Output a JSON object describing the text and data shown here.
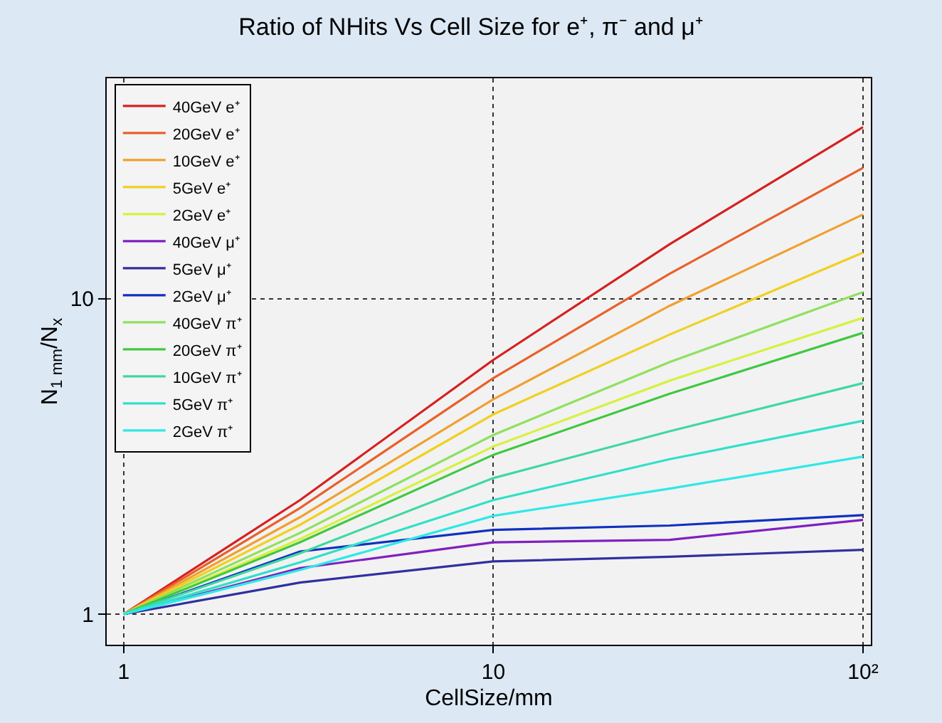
{
  "chart_data": {
    "type": "line",
    "title": "Ratio of NHits Vs Cell Size for e⁺, π⁻ and μ⁺",
    "xlabel": "CellSize/mm",
    "ylabel": "N$_{1 mm}$/N$_{x}$",
    "x": [
      1,
      3,
      10,
      30,
      100
    ],
    "log": "xy",
    "xlim": [
      0.9,
      105
    ],
    "ylim": [
      0.8,
      50
    ],
    "xticks": [
      1,
      10,
      {
        "value": 100,
        "label": "10²"
      }
    ],
    "yticks": [
      1,
      10
    ],
    "grid": true,
    "legend": "top left",
    "marker": "none",
    "line_style": "solid",
    "series": [
      {
        "name": "40GeV e⁺",
        "color": "#d62020",
        "values": [
          1,
          2.3,
          6.4,
          14.9,
          35
        ]
      },
      {
        "name": "20GeV e⁺",
        "color": "#e8602a",
        "values": [
          1,
          2.17,
          5.6,
          12,
          26
        ]
      },
      {
        "name": "10GeV e⁺",
        "color": "#f0a030",
        "values": [
          1,
          2.03,
          4.8,
          9.5,
          18.5
        ]
      },
      {
        "name": "5GeV e⁺",
        "color": "#f0d020",
        "values": [
          1,
          1.92,
          4.3,
          7.7,
          14
        ]
      },
      {
        "name": "2GeV e⁺",
        "color": "#d8f040",
        "values": [
          1,
          1.73,
          3.4,
          5.5,
          8.7
        ]
      },
      {
        "name": "40GeV μ⁺",
        "color": "#8020c0",
        "values": [
          1,
          1.4,
          1.69,
          1.72,
          1.99
        ]
      },
      {
        "name": "5GeV μ⁺",
        "color": "#3030a0",
        "values": [
          1,
          1.26,
          1.47,
          1.52,
          1.6
        ]
      },
      {
        "name": "2GeV μ⁺",
        "color": "#1030c0",
        "values": [
          1,
          1.58,
          1.85,
          1.91,
          2.06
        ]
      },
      {
        "name": "40GeV π⁺",
        "color": "#90e060",
        "values": [
          1,
          1.81,
          3.7,
          6.3,
          10.5
        ]
      },
      {
        "name": "20GeV π⁺",
        "color": "#40c840",
        "values": [
          1,
          1.69,
          3.2,
          5,
          7.8
        ]
      },
      {
        "name": "10GeV π⁺",
        "color": "#40d8a0",
        "values": [
          1,
          1.56,
          2.7,
          3.8,
          5.4
        ]
      },
      {
        "name": "5GeV π⁺",
        "color": "#30e0c8",
        "values": [
          1,
          1.46,
          2.3,
          3.1,
          4.1
        ]
      },
      {
        "name": "2GeV π⁺",
        "color": "#30e8e8",
        "values": [
          1,
          1.38,
          2.05,
          2.5,
          3.16
        ]
      }
    ]
  }
}
